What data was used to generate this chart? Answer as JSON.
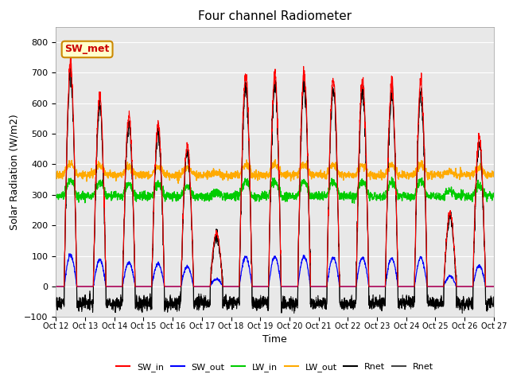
{
  "title": "Four channel Radiometer",
  "xlabel": "Time",
  "ylabel": "Solar Radiation (W/m2)",
  "ylim": [
    -100,
    850
  ],
  "yticks": [
    -100,
    0,
    100,
    200,
    300,
    400,
    500,
    600,
    700,
    800
  ],
  "xtick_labels": [
    "Oct 12",
    "Oct 13",
    "Oct 14",
    "Oct 15",
    "Oct 16",
    "Oct 17",
    "Oct 18",
    "Oct 19",
    "Oct 20",
    "Oct 21",
    "Oct 22",
    "Oct 23",
    "Oct 24",
    "Oct 25",
    "Oct 26",
    "Oct 27"
  ],
  "annotation_text": "SW_met",
  "annotation_bg": "#ffffcc",
  "annotation_edge": "#cc8800",
  "annotation_text_color": "#cc0000",
  "colors": {
    "SW_in": "#ff0000",
    "SW_out": "#0000ff",
    "LW_in": "#00cc00",
    "LW_out": "#ffaa00",
    "Rnet1": "#000000",
    "Rnet2": "#444444"
  },
  "legend_labels": [
    "SW_in",
    "SW_out",
    "LW_in",
    "LW_out",
    "Rnet",
    "Rnet"
  ],
  "background_color": "#e8e8e8",
  "grid_color": "#ffffff"
}
